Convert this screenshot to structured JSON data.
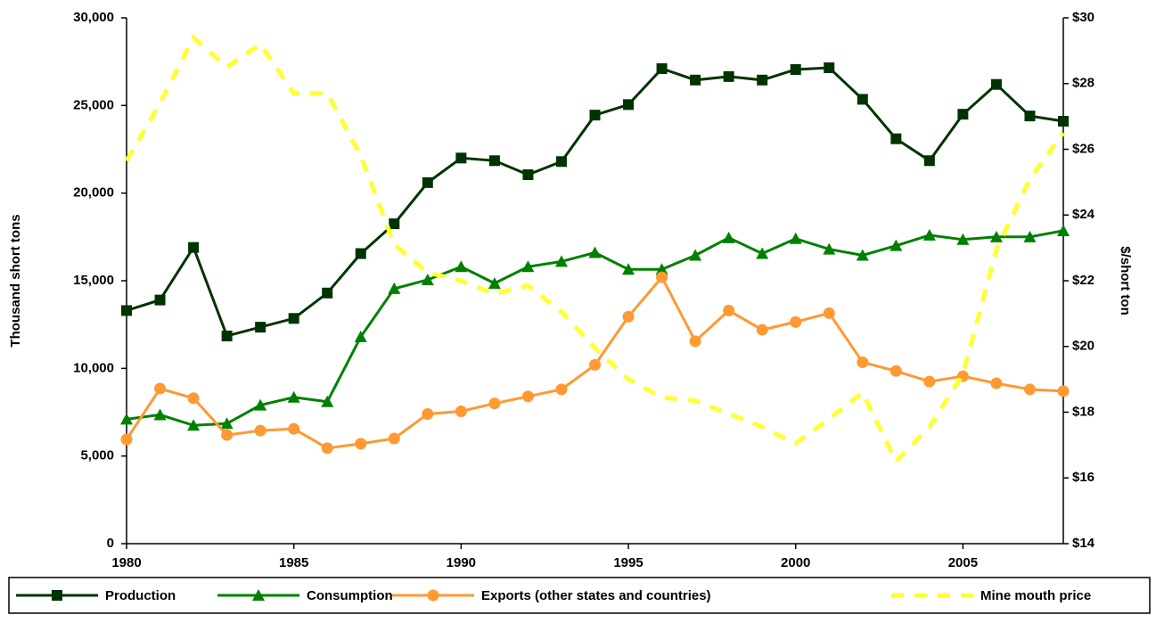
{
  "chart_data": {
    "type": "line",
    "y_label": "Thousand short tons",
    "y2_label": "$/short ton",
    "x": [
      1980,
      1981,
      1982,
      1983,
      1984,
      1985,
      1986,
      1987,
      1988,
      1989,
      1990,
      1991,
      1992,
      1993,
      1994,
      1995,
      1996,
      1997,
      1998,
      1999,
      2000,
      2001,
      2002,
      2003,
      2004,
      2005,
      2006,
      2007,
      2008
    ],
    "xlim": [
      1980,
      2008
    ],
    "xticks": [
      1980,
      1985,
      1990,
      1995,
      2000,
      2005
    ],
    "ylim": [
      0,
      30000
    ],
    "yticks": [
      0,
      {
        "value": 5000,
        "label": "5,000"
      },
      {
        "value": 10000,
        "label": "10,000"
      },
      {
        "value": 15000,
        "label": "15,000"
      },
      {
        "value": 20000,
        "label": "20,000"
      },
      {
        "value": 25000,
        "label": "25,000"
      },
      {
        "value": 30000,
        "label": "30,000"
      }
    ],
    "y2lim": [
      14,
      30
    ],
    "y2ticks": [
      {
        "value": 14,
        "label": "$14"
      },
      {
        "value": 16,
        "label": "$16"
      },
      {
        "value": 18,
        "label": "$18"
      },
      {
        "value": 20,
        "label": "$20"
      },
      {
        "value": 22,
        "label": "$22"
      },
      {
        "value": 24,
        "label": "$24"
      },
      {
        "value": 26,
        "label": "$26"
      },
      {
        "value": 28,
        "label": "$28"
      },
      {
        "value": 30,
        "label": "$30"
      }
    ],
    "grid": false,
    "legend": "bottom",
    "series": [
      {
        "name": "Production",
        "color": "#003300",
        "marker": "square",
        "values": [
          13300,
          13900,
          16900,
          11850,
          12350,
          12850,
          14300,
          16550,
          18250,
          20600,
          22000,
          21850,
          21050,
          21800,
          24450,
          25050,
          27100,
          26450,
          26650,
          26450,
          27050,
          27150,
          25350,
          23100,
          21850,
          24500,
          26200,
          24400,
          24100
        ]
      },
      {
        "name": "Consumption",
        "color": "#008000",
        "marker": "triangle",
        "values": [
          7100,
          7350,
          6750,
          6850,
          7900,
          8350,
          8100,
          11800,
          14550,
          15050,
          15800,
          14850,
          15800,
          16100,
          16600,
          15650,
          15650,
          16450,
          17450,
          16550,
          17400,
          16800,
          16450,
          17000,
          17600,
          17350,
          17500,
          17500,
          17850
        ]
      },
      {
        "name": "Exports (other states and countries)",
        "color": "#ff9933",
        "marker": "circle",
        "values": [
          5950,
          8850,
          8300,
          6200,
          6450,
          6550,
          5450,
          5700,
          6000,
          7400,
          7550,
          8000,
          8400,
          8800,
          10200,
          12950,
          15200,
          11550,
          13300,
          12200,
          12650,
          13150,
          10350,
          9850,
          9250,
          9550,
          9150,
          8800,
          8700
        ]
      },
      {
        "name": "Mine mouth price",
        "color": "#ffff33",
        "marker": "none",
        "dash": true,
        "axis": "y2",
        "values": [
          25.65,
          27.4,
          29.4,
          28.5,
          29.2,
          27.7,
          27.7,
          25.8,
          23.1,
          22.25,
          22.0,
          21.6,
          21.85,
          21.05,
          19.95,
          19.0,
          18.45,
          18.35,
          17.95,
          17.55,
          17.05,
          17.8,
          18.6,
          16.5,
          17.55,
          19.15,
          22.95,
          25.1,
          26.5
        ]
      }
    ]
  }
}
